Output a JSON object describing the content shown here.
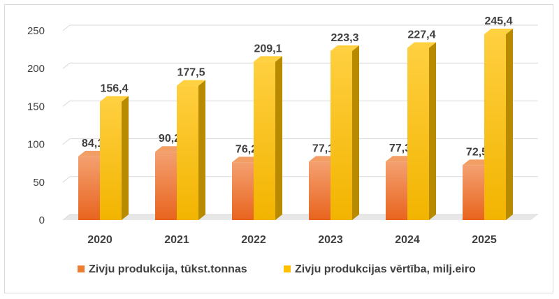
{
  "chart_data": {
    "type": "bar",
    "style": "3d-clustered-column",
    "categories": [
      "2020",
      "2021",
      "2022",
      "2023",
      "2024",
      "2025"
    ],
    "series": [
      {
        "name": "Zivju produkcija, tūkst.tonnas",
        "values": [
          84.1,
          90.2,
          76.2,
          77.1,
          77.3,
          72.5
        ],
        "labels": [
          "84,1",
          "90,2",
          "76,2",
          "77,1",
          "77,3",
          "72,5"
        ],
        "color": "#ED7D31"
      },
      {
        "name": "Zivju produkcijas vērtība, milj.eiro",
        "values": [
          156.4,
          177.5,
          209.1,
          223.3,
          227.4,
          245.4
        ],
        "labels": [
          "156,4",
          "177,5",
          "209,1",
          "223,3",
          "227,4",
          "245,4"
        ],
        "color": "#FFC000"
      }
    ],
    "yticks": [
      0,
      50,
      100,
      150,
      200,
      250
    ],
    "ylim": [
      0,
      250
    ],
    "grid": true,
    "legend_position": "bottom"
  }
}
